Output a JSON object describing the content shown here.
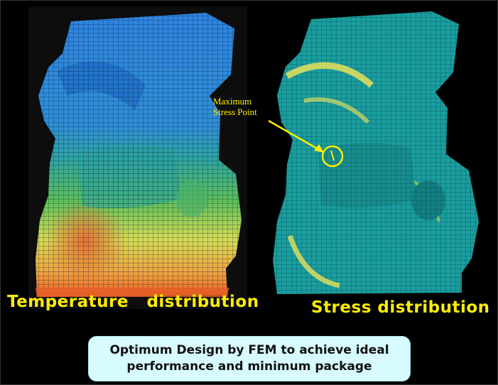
{
  "slide": {
    "left_caption": "Temperature   distribution",
    "right_caption": "Stress distribution",
    "callout": {
      "line1": "Maximum",
      "line2": "Stress Point"
    },
    "summary": "Optimum Design by FEM to achieve ideal performance and minimum package"
  },
  "colors": {
    "background": "#000000",
    "caption": "#ffee00",
    "summary_box": "#d8fbff",
    "stress_model": "#1a9ea0",
    "temp_cool": "#2f83e0",
    "temp_hot": "#e85a20"
  },
  "images": {
    "left": "fem-temperature-distribution-model",
    "right": "fem-stress-distribution-model"
  }
}
